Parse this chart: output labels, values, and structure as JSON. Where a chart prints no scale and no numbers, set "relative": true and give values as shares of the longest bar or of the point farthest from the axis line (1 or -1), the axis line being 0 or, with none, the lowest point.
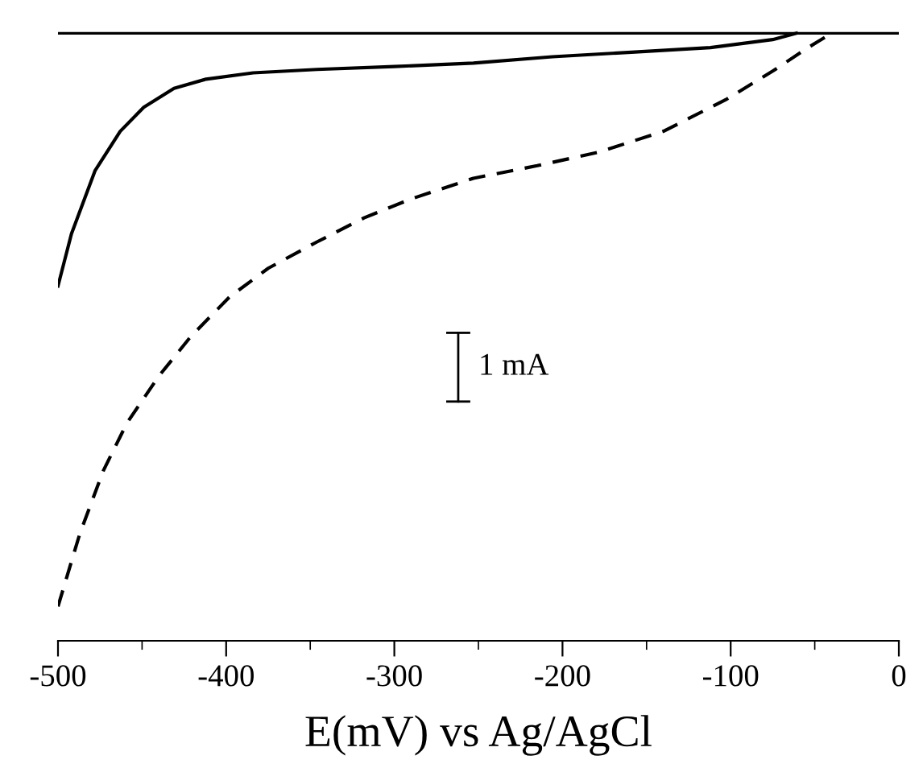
{
  "chart_data": {
    "type": "line",
    "relative": true,
    "xlabel": "E(mV) vs Ag/AgCl",
    "xlim": [
      -500,
      0
    ],
    "xticks": [
      -500,
      -400,
      -300,
      -200,
      -100,
      0
    ],
    "tick_labels": "x",
    "grid": false,
    "marker": "none",
    "annotations": [
      "1 mA"
    ],
    "ref_lines": [
      {
        "axis": "y",
        "value": 0,
        "color": "#000000",
        "line_style": "solid"
      }
    ],
    "series": [
      {
        "color": "#000000",
        "line_style": "solid",
        "x": [
          -500,
          -492,
          -478,
          -463,
          -449,
          -431,
          -412,
          -384,
          -346,
          -300,
          -253,
          -206,
          -159,
          -112,
          -75,
          -61
        ],
        "values": [
          -0.441,
          -0.35,
          -0.24,
          -0.171,
          -0.129,
          -0.096,
          -0.08,
          -0.069,
          -0.063,
          -0.058,
          -0.052,
          -0.041,
          -0.033,
          -0.025,
          -0.011,
          0
        ]
      },
      {
        "color": "#000000",
        "line_style": "dashed",
        "x": [
          -500,
          -487,
          -473,
          -459,
          -440,
          -421,
          -398,
          -375,
          -346,
          -318,
          -290,
          -253,
          -215,
          -178,
          -140,
          -103,
          -75,
          -54,
          -40
        ],
        "values": [
          -1,
          -0.873,
          -0.763,
          -0.68,
          -0.598,
          -0.529,
          -0.46,
          -0.41,
          -0.364,
          -0.322,
          -0.289,
          -0.253,
          -0.231,
          -0.207,
          -0.171,
          -0.116,
          -0.066,
          -0.025,
          0
        ]
      }
    ]
  }
}
